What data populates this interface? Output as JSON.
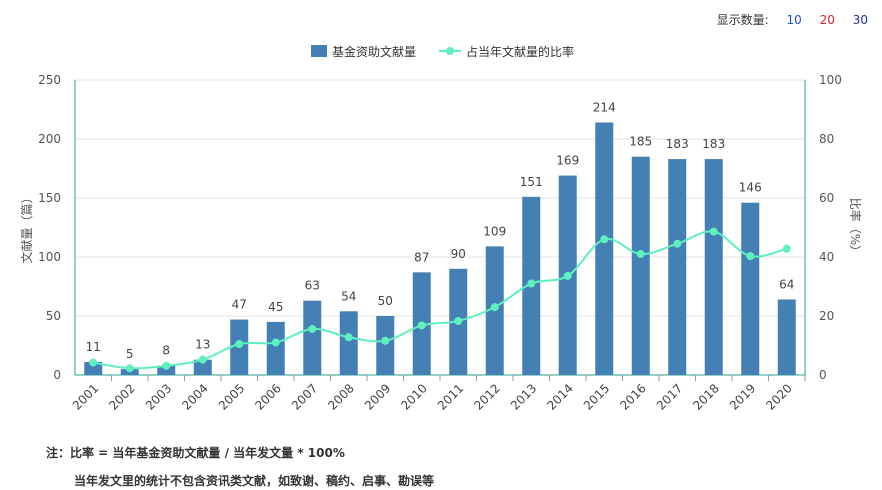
{
  "display_control": {
    "label": "显示数量:",
    "options": [
      {
        "label": "10",
        "color": "#1f4fd6"
      },
      {
        "label": "20",
        "color": "#e0202a"
      },
      {
        "label": "30",
        "color": "#1f2f9e"
      }
    ]
  },
  "notes": {
    "line1": "注：比率 = 当年基金资助文献量 / 当年发文量 * 100%",
    "line2": "当年发文里的统计不包含资讯类文献，如致谢、稿约、启事、勘误等"
  },
  "chart_data": {
    "type": "bar",
    "categories": [
      "2001",
      "2002",
      "2003",
      "2004",
      "2005",
      "2006",
      "2007",
      "2008",
      "2009",
      "2010",
      "2011",
      "2012",
      "2013",
      "2014",
      "2015",
      "2016",
      "2017",
      "2018",
      "2019",
      "2020"
    ],
    "series": [
      {
        "name": "基金资助文献量",
        "type": "bar",
        "axis": "left",
        "color": "#4580b5",
        "values": [
          11,
          5,
          8,
          13,
          47,
          45,
          63,
          54,
          50,
          87,
          90,
          109,
          151,
          169,
          214,
          185,
          183,
          183,
          146,
          64
        ]
      },
      {
        "name": "占当年文献量的比率",
        "type": "line",
        "axis": "right",
        "color": "#5ef0be",
        "values": [
          4.2,
          2.3,
          3.1,
          5.2,
          10.5,
          11.0,
          15.6,
          12.8,
          11.6,
          16.8,
          18.3,
          23.0,
          31.0,
          33.6,
          46.0,
          41.0,
          44.5,
          48.6,
          40.3,
          42.8
        ]
      }
    ],
    "ylabel": "文献量（篇）",
    "ylabel_right": "比率（%）",
    "ylim": [
      0,
      250
    ],
    "yticks": [
      0,
      50,
      100,
      150,
      200,
      250
    ],
    "ylim_right": [
      0,
      100
    ],
    "yticks_right": [
      0,
      20,
      40,
      60,
      80,
      100
    ],
    "legend_position": "top-center",
    "grid": true
  }
}
